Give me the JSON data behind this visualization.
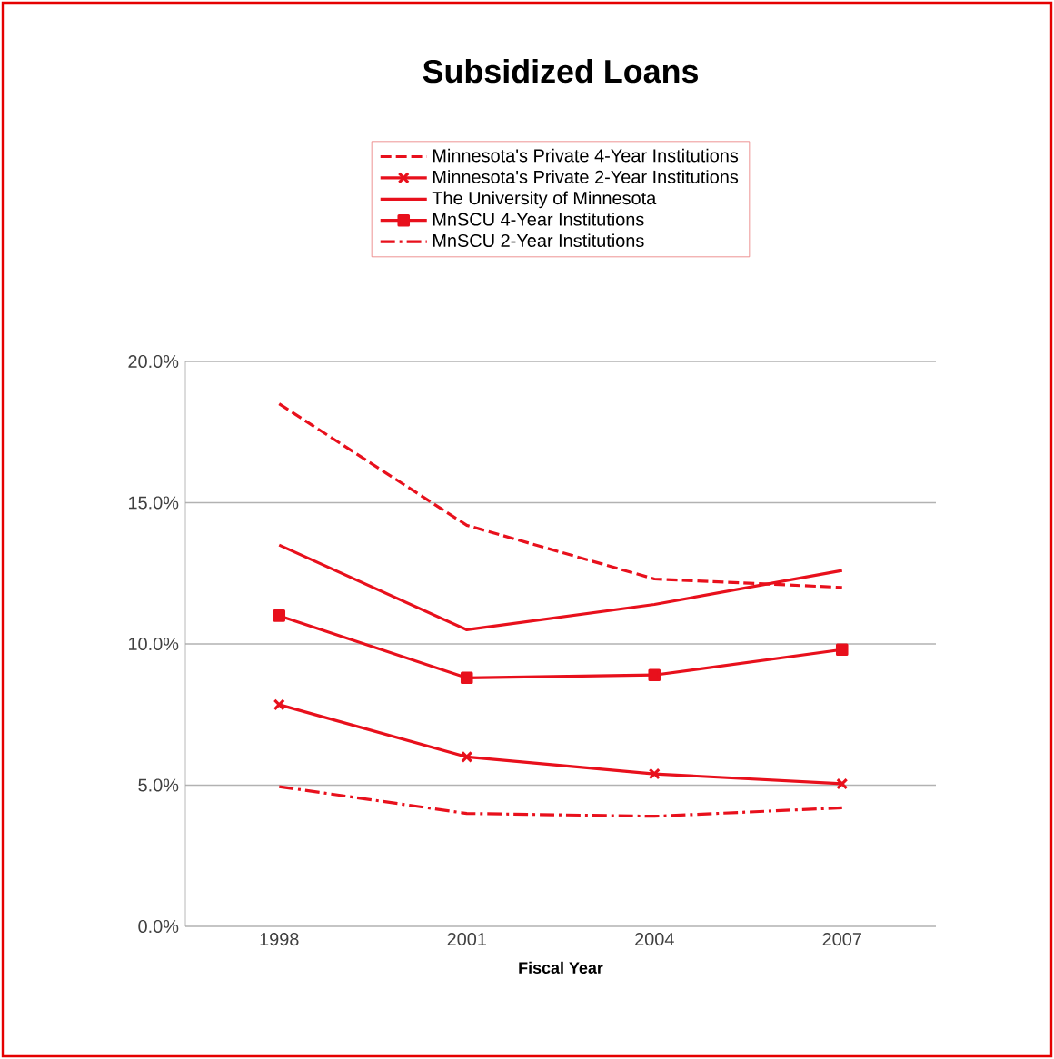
{
  "chart_data": {
    "type": "line",
    "title": "Subsidized Loans",
    "xlabel": "Fiscal Year",
    "categories": [
      "1998",
      "2001",
      "2004",
      "2007"
    ],
    "series": [
      {
        "name": "Minnesota's Private 4-Year Institutions",
        "color": "#e8101c",
        "line_style": "dashed",
        "marker": "none",
        "values": [
          18.5,
          14.2,
          12.3,
          12.0
        ]
      },
      {
        "name": "Minnesota's Private 2-Year Institutions",
        "color": "#e8101c",
        "line_style": "solid",
        "marker": "cross",
        "values": [
          7.85,
          6.0,
          5.4,
          5.05
        ]
      },
      {
        "name": "The University of Minnesota",
        "color": "#e8101c",
        "line_style": "solid",
        "marker": "none",
        "values": [
          13.5,
          10.5,
          11.4,
          12.6
        ]
      },
      {
        "name": "MnSCU 4-Year Institutions",
        "color": "#e8101c",
        "line_style": "solid",
        "marker": "square",
        "values": [
          11.0,
          8.8,
          8.9,
          9.8
        ]
      },
      {
        "name": "MnSCU 2-Year Institutions",
        "color": "#e8101c",
        "line_style": "dashdot",
        "marker": "none",
        "values": [
          4.95,
          4.0,
          3.9,
          4.2
        ]
      }
    ],
    "ylim": [
      0,
      20
    ],
    "yticks": [
      {
        "value": 0,
        "label": "0.0%"
      },
      {
        "value": 5,
        "label": "5.0%"
      },
      {
        "value": 10,
        "label": "10.0%"
      },
      {
        "value": 15,
        "label": "15.0%"
      },
      {
        "value": 20,
        "label": "20.0%"
      }
    ],
    "grid": "y",
    "legend": "top"
  }
}
